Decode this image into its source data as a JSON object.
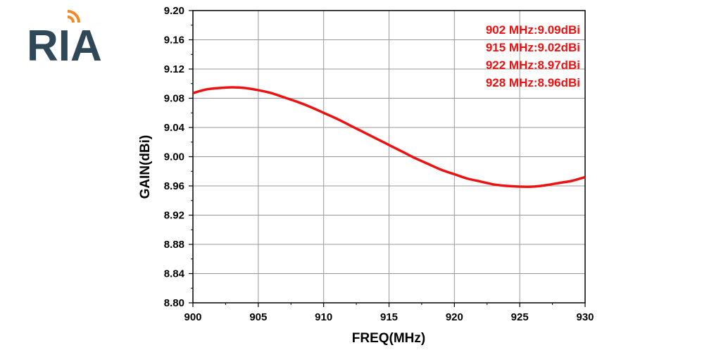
{
  "logo": {
    "text": "RIA",
    "color": "#2f4858",
    "accent": "#f08a24"
  },
  "chart_data": {
    "type": "line",
    "xlabel": "FREQ(MHz)",
    "ylabel": "GAIN(dBi)",
    "xlim": [
      900,
      930
    ],
    "ylim": [
      8.8,
      9.2
    ],
    "x_ticks": [
      "900",
      "905",
      "910",
      "915",
      "920",
      "925",
      "930"
    ],
    "y_ticks": [
      "8.80",
      "8.84",
      "8.88",
      "8.92",
      "8.96",
      "9.00",
      "9.04",
      "9.08",
      "9.12",
      "9.16",
      "9.20"
    ],
    "grid": true,
    "series": [
      {
        "color": "#ee1111",
        "x": [
          900,
          901,
          902,
          903,
          904,
          905,
          906,
          907,
          908,
          909,
          910,
          911,
          912,
          913,
          914,
          915,
          916,
          917,
          918,
          919,
          920,
          921,
          922,
          923,
          924,
          925,
          926,
          927,
          928,
          929,
          930
        ],
        "y": [
          9.087,
          9.092,
          9.094,
          9.095,
          9.094,
          9.091,
          9.087,
          9.081,
          9.075,
          9.068,
          9.06,
          9.052,
          9.043,
          9.034,
          9.025,
          9.016,
          9.007,
          8.998,
          8.99,
          8.982,
          8.976,
          8.97,
          8.966,
          8.962,
          8.96,
          8.959,
          8.959,
          8.961,
          8.964,
          8.967,
          8.972
        ]
      }
    ],
    "annotations": [
      "902 MHz:9.09dBi",
      "915 MHz:9.02dBi",
      "922 MHz:8.97dBi",
      "928 MHz:8.96dBi"
    ],
    "annotation_color": "#ee1111"
  }
}
